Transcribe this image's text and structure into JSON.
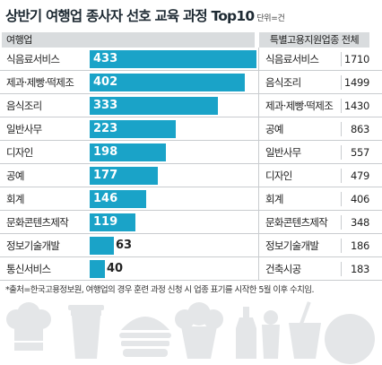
{
  "header": {
    "title": "상반기 여행업 종사자 선호 교육 과정 Top10",
    "unit": "단위=건",
    "left_column": "여행업",
    "right_column": "특별고용지원업종 전체"
  },
  "footnote": "*출처=한국고용정보원, 여행업의 경우 훈련 과정 신청 시 업종 표기를 시작한 5월 이후 수치임.",
  "colors": {
    "bar": "#1aa3c8",
    "header_bg": "#d9dcde",
    "icon": "#e4e6e8"
  },
  "icons": [
    "chef-hat-icon",
    "coffee-cup-icon",
    "burger-icon",
    "cupcake-icon",
    "wine-bottle-icon",
    "drink-cup-icon",
    "coffee-mug-icon"
  ],
  "chart_data": [
    {
      "type": "bar",
      "orientation": "horizontal",
      "series_name": "여행업",
      "categories": [
        "식음료서비스",
        "제과·제빵·떡제조",
        "음식조리",
        "일반사무",
        "디자인",
        "공예",
        "회계",
        "문화콘텐츠제작",
        "정보기술개발",
        "통신서비스"
      ],
      "values": [
        433,
        402,
        333,
        223,
        198,
        177,
        146,
        119,
        63,
        40
      ],
      "xlim": [
        0,
        433
      ]
    },
    {
      "type": "table",
      "series_name": "특별고용지원업종 전체",
      "categories": [
        "식음료서비스",
        "음식조리",
        "제과·제빵·떡제조",
        "공예",
        "일반사무",
        "디자인",
        "회계",
        "문화콘텐츠제작",
        "정보기술개발",
        "건축시공"
      ],
      "values": [
        1710,
        1499,
        1430,
        863,
        557,
        479,
        406,
        348,
        186,
        183
      ]
    }
  ]
}
